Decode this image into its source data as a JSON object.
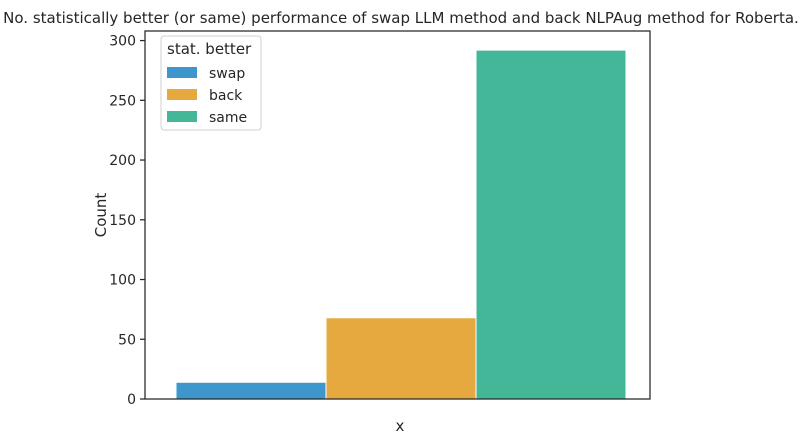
{
  "chart_data": {
    "type": "bar",
    "title": "No. statistically better (or same) performance of swap LLM method and back NLPAug method for Roberta.",
    "xlabel": "x",
    "ylabel": "Count",
    "categories": [
      "swap",
      "back",
      "same"
    ],
    "values": [
      14,
      68,
      292
    ],
    "ylim": [
      0,
      308
    ],
    "yticks": [
      0,
      50,
      100,
      150,
      200,
      250,
      300
    ],
    "grid": false,
    "legend": {
      "title": "stat. better",
      "placement": "top-left",
      "entries": [
        "swap",
        "back",
        "same"
      ]
    },
    "colors": {
      "swap": "#3d97cc",
      "back": "#e6a93f",
      "same": "#44b799"
    }
  }
}
